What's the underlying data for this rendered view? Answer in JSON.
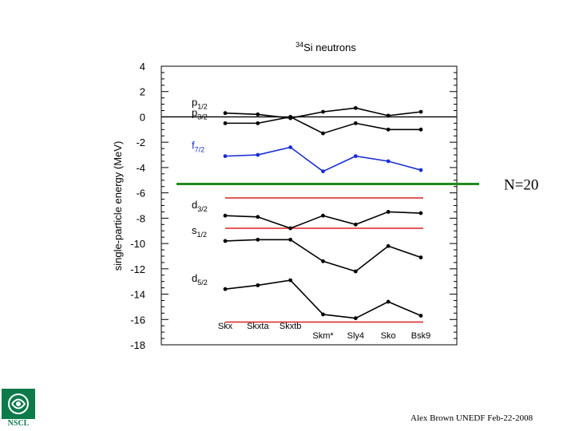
{
  "chart_data": {
    "type": "line",
    "title": "34Si neutrons",
    "title_super": "34",
    "title_main": "Si neutrons",
    "ylabel": "single-particle energy (MeV)",
    "xlabel": "",
    "ylim": [
      -18,
      4
    ],
    "yticks": [
      4,
      2,
      0,
      -2,
      -4,
      -6,
      -8,
      -10,
      -12,
      -14,
      -16,
      -18
    ],
    "categories": [
      "Skx",
      "Skxta",
      "Skxtb",
      "Skm*",
      "Sly4",
      "Sko",
      "Bsk9"
    ],
    "series": [
      {
        "name": "p1/2",
        "base": "p",
        "sub": "1/2",
        "color": "#000000",
        "values": [
          0.3,
          0.2,
          -0.1,
          0.4,
          0.7,
          0.1,
          0.4
        ]
      },
      {
        "name": "p3/2",
        "base": "p",
        "sub": "3/2",
        "color": "#000000",
        "values": [
          -0.5,
          -0.5,
          0.0,
          -1.3,
          -0.5,
          -1.0,
          -1.0
        ]
      },
      {
        "name": "f7/2",
        "base": "f",
        "sub": "7/2",
        "color": "#1a2fd4",
        "values": [
          -3.1,
          -3.0,
          -2.4,
          -4.3,
          -3.1,
          -3.5,
          -4.2
        ]
      },
      {
        "name": "d3/2",
        "base": "d",
        "sub": "3/2",
        "color": "#000000",
        "values": [
          -7.8,
          -7.9,
          -8.8,
          -7.8,
          -8.5,
          -7.5,
          -7.6
        ]
      },
      {
        "name": "s1/2",
        "base": "s",
        "sub": "1/2",
        "color": "#000000",
        "values": [
          -9.8,
          -9.7,
          -9.7,
          -11.4,
          -12.2,
          -10.2,
          -11.1
        ]
      },
      {
        "name": "d5/2",
        "base": "d",
        "sub": "5/2",
        "color": "#000000",
        "values": [
          -13.6,
          -13.3,
          -12.9,
          -15.6,
          -15.9,
          -14.6,
          -15.7
        ]
      }
    ],
    "red_lines": [
      -6.4,
      -8.8,
      -16.2
    ],
    "zero_line": 0,
    "gap_annotation": "N=20",
    "gap_line_value": -5.3
  },
  "footer": {
    "credit": "Alex Brown UNEDF Feb-22-2008",
    "logo_text": "NSCL"
  },
  "colors": {
    "gap_line": "#1f8a1f",
    "red_line": "#dd2020",
    "logo": "#0d7a4a"
  }
}
